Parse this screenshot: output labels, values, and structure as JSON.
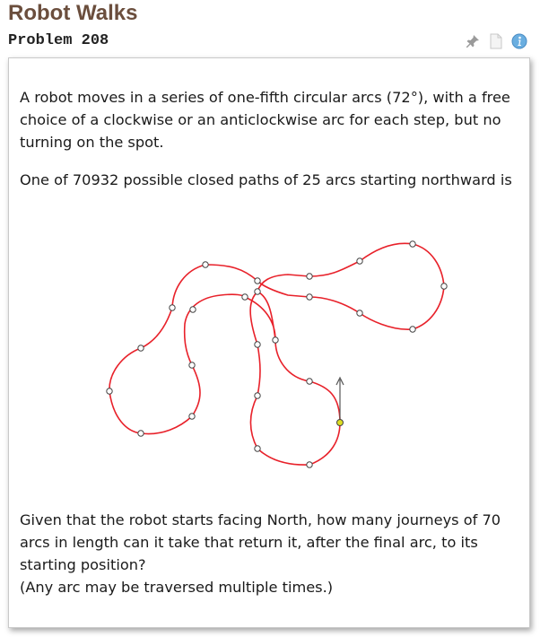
{
  "title": "Robot Walks",
  "subtitle": "Problem 208",
  "icons": [
    "pin-icon",
    "document-icon",
    "info-icon"
  ],
  "colors": {
    "title": "#6b4e3d",
    "path": "#e8212a",
    "start_marker": "#dddd22"
  },
  "paragraphs": {
    "p1": "A robot moves in a series of one-fifth circular arcs (72°), with a free choice of a clockwise or an anticlockwise arc for each step, but no turning on the spot.",
    "p2": "One of 70932 possible closed paths of 25 arcs starting northward is",
    "p3": "Given that the robot starts facing North, how many journeys of 70 arcs in length can it take that return it, after the final arc, to its starting position?",
    "p4": "(Any arc may be traversed multiple times.)"
  },
  "figure": {
    "arc_count": 25,
    "start_direction": "North"
  }
}
